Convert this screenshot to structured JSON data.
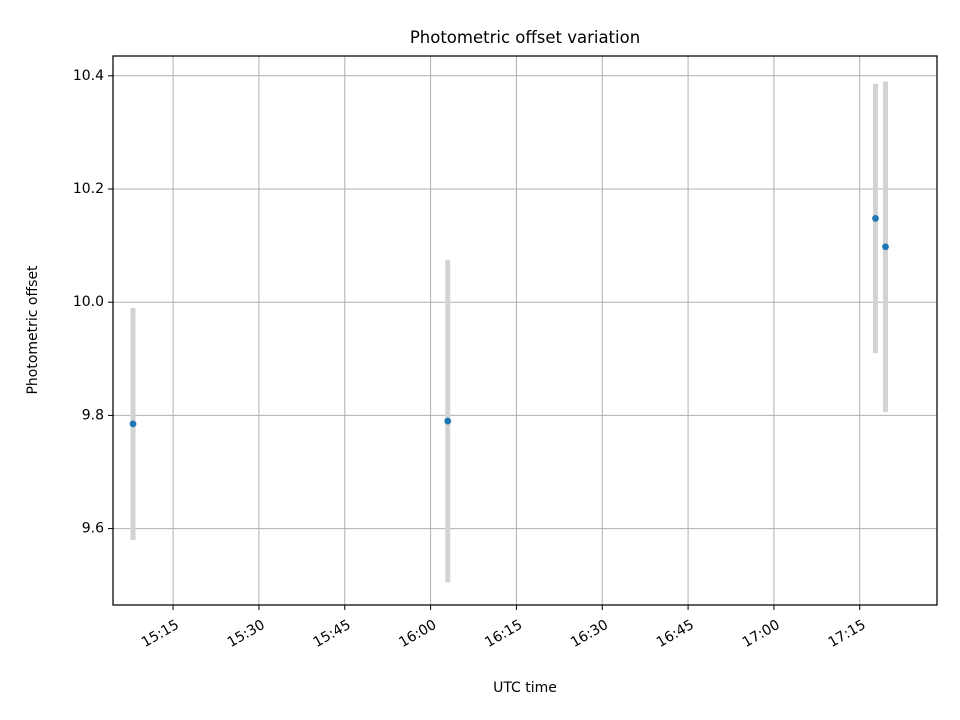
{
  "chart_data": {
    "type": "scatter",
    "title": "Photometric offset variation",
    "xlabel": "UTC time",
    "ylabel": "Photometric offset",
    "x_ticks": [
      "15:15",
      "15:30",
      "15:45",
      "16:00",
      "16:15",
      "16:30",
      "16:45",
      "17:00",
      "17:15"
    ],
    "y_ticks": [
      "9.6",
      "9.8",
      "10.0",
      "10.2",
      "10.4"
    ],
    "xlim": [
      "15:04:30",
      "17:28:30"
    ],
    "ylim": [
      9.465,
      10.435
    ],
    "grid": true,
    "points": [
      {
        "time": "15:08:00",
        "value": 9.785,
        "error": 0.205
      },
      {
        "time": "16:03:00",
        "value": 9.79,
        "error": 0.285
      },
      {
        "time": "17:17:45",
        "value": 10.148,
        "error": 0.238
      },
      {
        "time": "17:19:30",
        "value": 10.098,
        "error": 0.292
      }
    ],
    "colors": {
      "marker": "#1f77b4",
      "errorbar": "#d3d3d3",
      "grid": "#b0b0b0",
      "axes": "#000000"
    }
  }
}
